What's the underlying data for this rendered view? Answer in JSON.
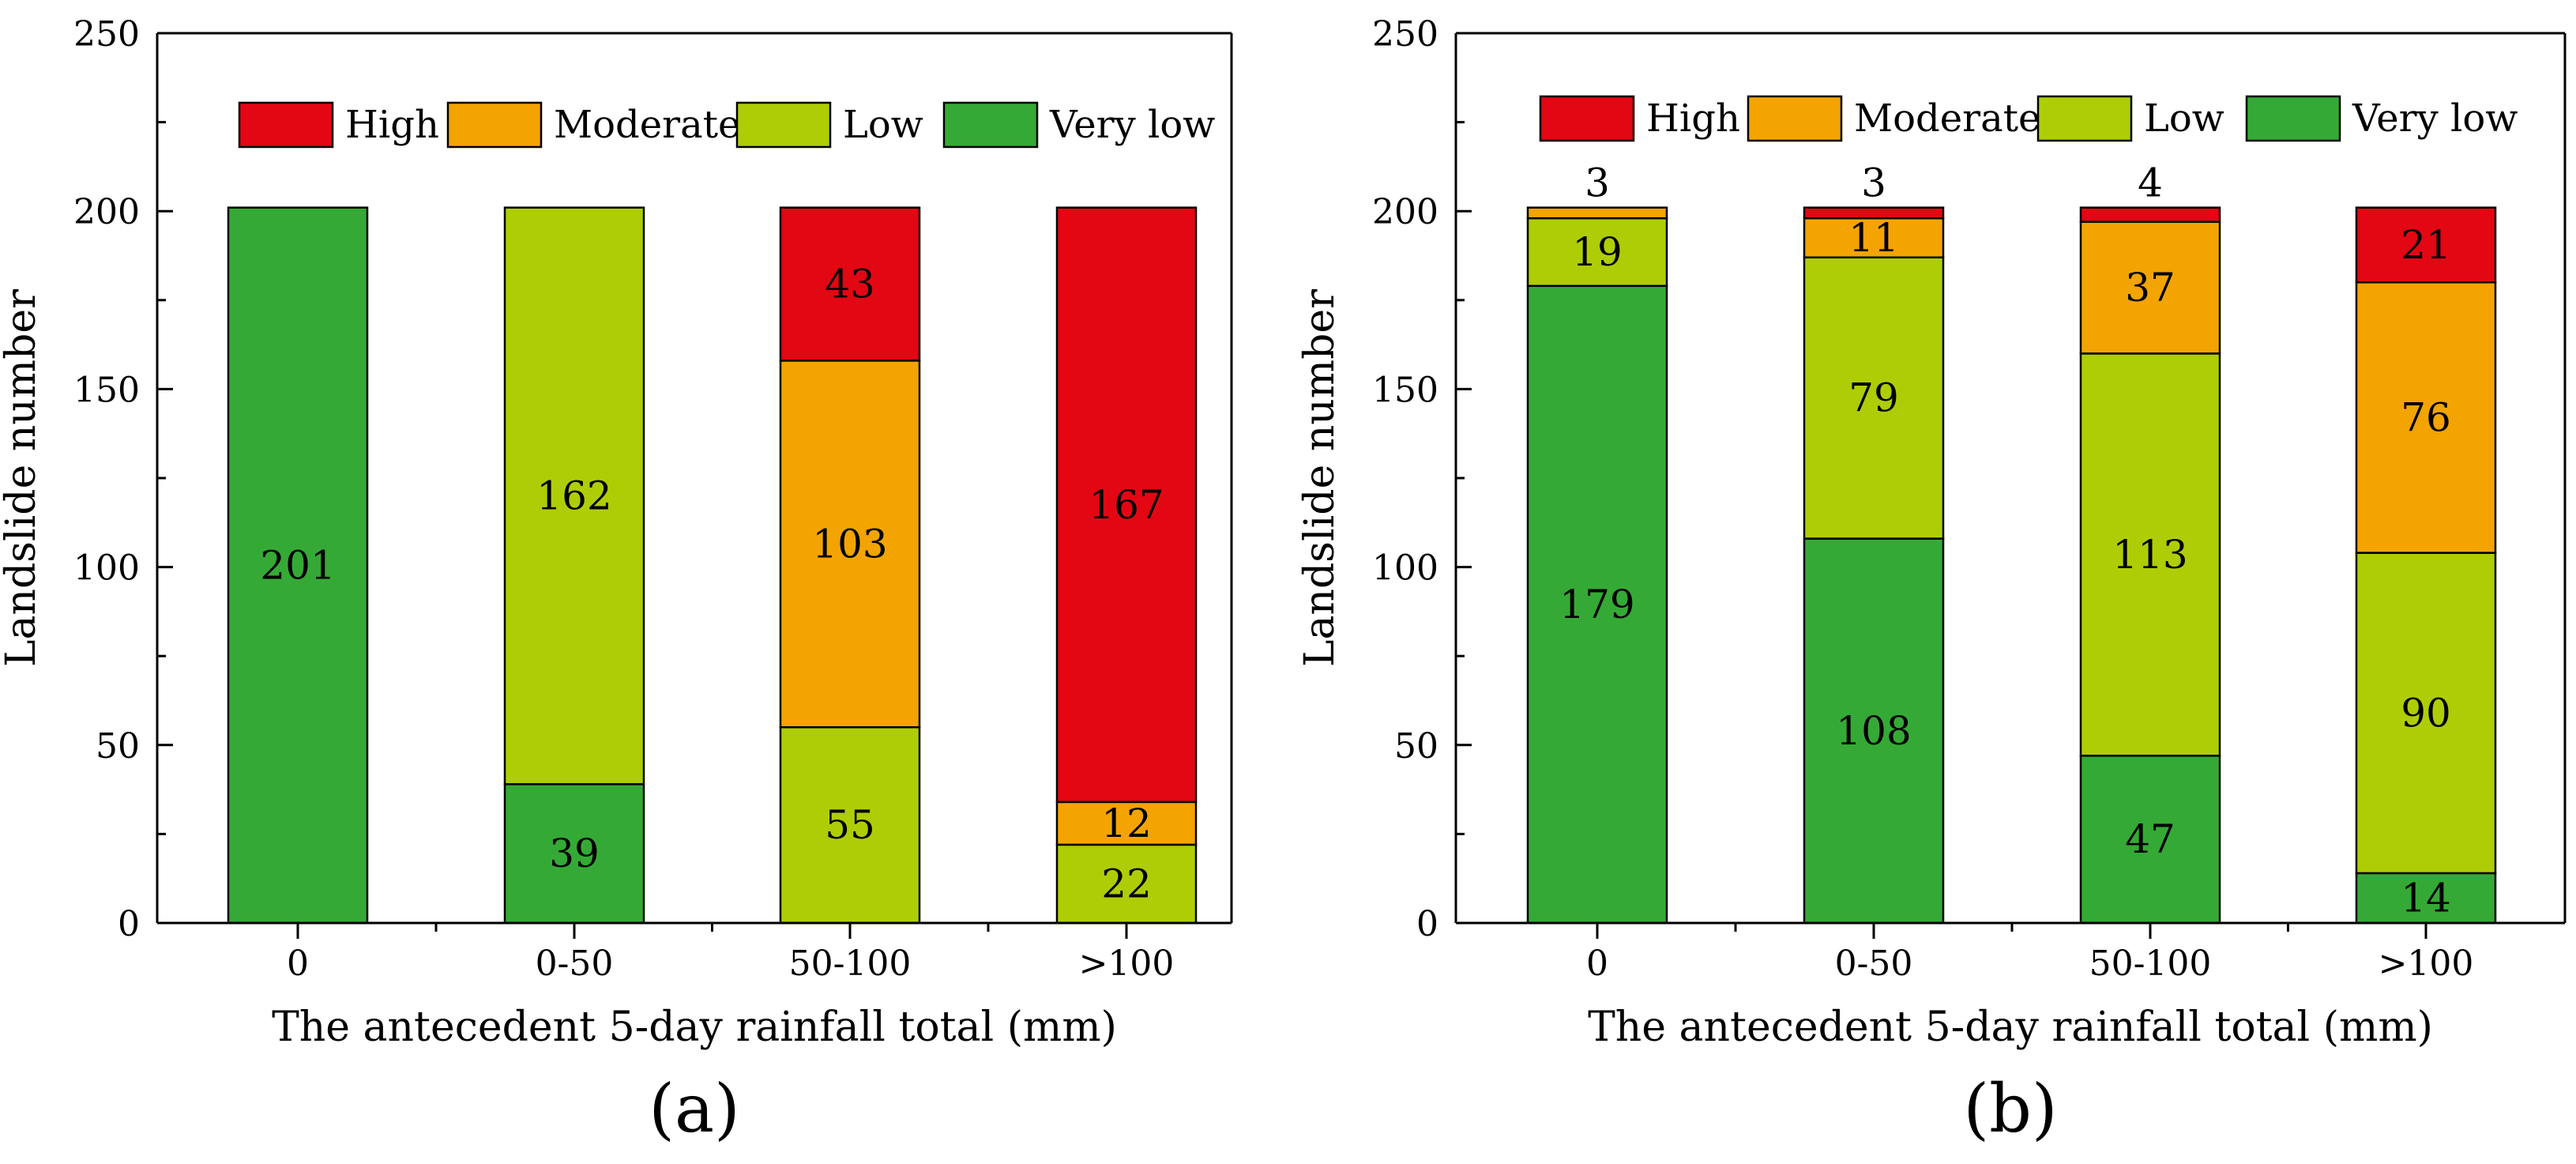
{
  "colors": {
    "High": "#e30613",
    "Moderate": "#f4a400",
    "Low": "#afcd05",
    "Very low": "#35a935",
    "axis": "#000000"
  },
  "chart_data": [
    {
      "type": "bar",
      "stacked": true,
      "panel_label": "(a)",
      "categories": [
        "0",
        "0-50",
        "50-100",
        ">100"
      ],
      "xlabel": "The antecedent 5-day rainfall total (mm)",
      "ylabel": "Landslide number",
      "ylim": [
        0,
        250
      ],
      "yticks": [
        0,
        50,
        100,
        150,
        200,
        250
      ],
      "legend": {
        "position": "top",
        "entries": [
          "High",
          "Moderate",
          "Low",
          "Very low"
        ]
      },
      "series": [
        {
          "name": "Very low",
          "values": [
            201,
            39,
            0,
            0
          ],
          "labels": [
            "201",
            "39",
            "",
            ""
          ]
        },
        {
          "name": "Low",
          "values": [
            0,
            162,
            55,
            22
          ],
          "labels": [
            "",
            "162",
            "55",
            "22"
          ]
        },
        {
          "name": "Moderate",
          "values": [
            0,
            0,
            103,
            12
          ],
          "labels": [
            "",
            "",
            "103",
            "12"
          ]
        },
        {
          "name": "High",
          "values": [
            0,
            0,
            43,
            167
          ],
          "labels": [
            "",
            "",
            "43",
            "167"
          ]
        }
      ],
      "grid": false
    },
    {
      "type": "bar",
      "stacked": true,
      "panel_label": "(b)",
      "categories": [
        "0",
        "0-50",
        "50-100",
        ">100"
      ],
      "xlabel": "The antecedent 5-day rainfall total (mm)",
      "ylabel": "Landslide number",
      "ylim": [
        0,
        250
      ],
      "yticks": [
        0,
        50,
        100,
        150,
        200,
        250
      ],
      "legend": {
        "position": "top",
        "entries": [
          "High",
          "Moderate",
          "Low",
          "Very low"
        ]
      },
      "series": [
        {
          "name": "Very low",
          "values": [
            179,
            108,
            47,
            14
          ],
          "labels": [
            "179",
            "108",
            "47",
            "14"
          ]
        },
        {
          "name": "Low",
          "values": [
            19,
            79,
            113,
            90
          ],
          "labels": [
            "19",
            "79",
            "113",
            "90"
          ]
        },
        {
          "name": "Moderate",
          "values": [
            3,
            11,
            37,
            76
          ],
          "labels": [
            "3",
            "11",
            "37",
            "76"
          ]
        },
        {
          "name": "High",
          "values": [
            0,
            3,
            4,
            21
          ],
          "labels": [
            "",
            "",
            "",
            "21"
          ]
        }
      ],
      "top_labels": [
        "3",
        "3",
        "4",
        ""
      ],
      "grid": false
    }
  ]
}
